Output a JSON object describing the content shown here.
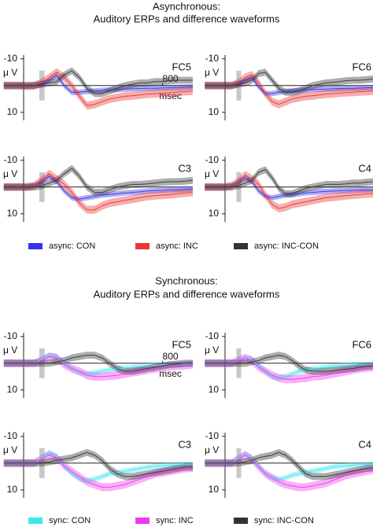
{
  "section_titles": [
    [
      "Asynchronous:",
      "Auditory ERPs and difference waveforms"
    ],
    [
      "Synchronous:",
      "Auditory ERPs and difference waveforms"
    ]
  ],
  "chart_data": [
    {
      "type": "line",
      "title": "FC5",
      "y_label": "μ V",
      "x_label": "msec",
      "ylim": [
        -12,
        13
      ],
      "y_inverted": true,
      "yticks": [
        -10,
        10
      ],
      "xlim": [
        -275,
        1000
      ],
      "xticks": [
        800
      ],
      "stimulus_window": [
        -15,
        20
      ],
      "x": [
        -250,
        -200,
        -150,
        -100,
        -50,
        0,
        50,
        100,
        150,
        200,
        250,
        300,
        350,
        400,
        450,
        500,
        550,
        600,
        650,
        700,
        750,
        800,
        850,
        900,
        950,
        1000
      ],
      "series": [
        {
          "name": "async: CON",
          "color": "#3535e8",
          "band": 1.0,
          "values": [
            0,
            0,
            0,
            0.2,
            0,
            -0.5,
            -2,
            -3.8,
            0,
            2.6,
            2.5,
            2.2,
            2,
            1.8,
            1.6,
            1.5,
            1.3,
            1.2,
            1.1,
            1,
            1,
            0.9,
            0.8,
            0.7,
            0.6,
            0.5
          ]
        },
        {
          "name": "async: INC",
          "color": "#e83535",
          "band": 1.5,
          "values": [
            0,
            0,
            0,
            0.2,
            0,
            -1,
            -3,
            -5,
            -3,
            0,
            4,
            7.5,
            7,
            6,
            5,
            4.5,
            4,
            3.8,
            3.5,
            3.2,
            3,
            2.8,
            2.6,
            2.4,
            2.2,
            2
          ]
        },
        {
          "name": "async: INC-CON",
          "color": "#333333",
          "band": 1.3,
          "values": [
            0,
            0,
            0,
            0,
            0,
            -0.5,
            -1,
            -1.5,
            -4,
            -5.5,
            -3,
            1,
            3,
            3,
            2,
            1,
            0,
            -0.5,
            -1,
            -1,
            -1.5,
            -1.5,
            -1.8,
            -2,
            -2,
            -2
          ]
        }
      ]
    },
    {
      "type": "line",
      "title": "FC6",
      "y_label": "μ V",
      "ylim": [
        -12,
        13
      ],
      "y_inverted": true,
      "yticks": [
        -10,
        10
      ],
      "xlim": [
        -275,
        1000
      ],
      "stimulus_window": [
        -15,
        20
      ],
      "x": [
        -250,
        -200,
        -150,
        -100,
        -50,
        0,
        50,
        100,
        150,
        200,
        250,
        300,
        350,
        400,
        450,
        500,
        550,
        600,
        650,
        700,
        750,
        800,
        850,
        900,
        950,
        1000
      ],
      "series": [
        {
          "name": "async: CON",
          "color": "#3535e8",
          "band": 1.0,
          "values": [
            0,
            0,
            0,
            0,
            0,
            -0.5,
            -2,
            -3,
            0.5,
            3,
            3,
            2.5,
            2.2,
            2,
            1.8,
            1.6,
            1.5,
            1.4,
            1.3,
            1.2,
            1.1,
            1,
            1,
            0.9,
            0.8,
            0.8
          ]
        },
        {
          "name": "async: INC",
          "color": "#e83535",
          "band": 1.5,
          "values": [
            0,
            0,
            0,
            0,
            0,
            -1,
            -3,
            -4,
            -1,
            3,
            6,
            7,
            6,
            5,
            4.5,
            4,
            3.8,
            3.5,
            3.2,
            3,
            2.8,
            2.6,
            2.5,
            2.3,
            2.2,
            2
          ]
        },
        {
          "name": "async: INC-CON",
          "color": "#333333",
          "band": 1.3,
          "values": [
            0,
            0,
            0,
            0,
            0,
            -0.5,
            -1,
            -2,
            -4.5,
            -5,
            -2,
            1,
            2.5,
            2.5,
            2,
            1,
            0,
            -0.5,
            -1,
            -1.2,
            -1.5,
            -1.8,
            -2,
            -2,
            -2.2,
            -2.5
          ]
        }
      ]
    },
    {
      "type": "line",
      "title": "C3",
      "y_label": "μ V",
      "ylim": [
        -12,
        13
      ],
      "y_inverted": true,
      "yticks": [
        -10,
        10
      ],
      "xlim": [
        -275,
        1000
      ],
      "stimulus_window": [
        -15,
        20
      ],
      "x": [
        -250,
        -200,
        -150,
        -100,
        -50,
        0,
        50,
        100,
        150,
        200,
        250,
        300,
        350,
        400,
        450,
        500,
        550,
        600,
        650,
        700,
        750,
        800,
        850,
        900,
        950,
        1000
      ],
      "series": [
        {
          "name": "async: CON",
          "color": "#3535e8",
          "band": 1.0,
          "values": [
            0,
            0,
            0,
            0,
            -0.5,
            -2,
            -4,
            -2,
            1.5,
            4,
            4.5,
            4,
            3.5,
            3,
            2.8,
            2.5,
            2.2,
            2,
            1.8,
            1.5,
            1.3,
            1.2,
            1,
            1,
            0.8,
            0.8
          ]
        },
        {
          "name": "async: INC",
          "color": "#e83535",
          "band": 1.5,
          "values": [
            0,
            0,
            0,
            0,
            -0.5,
            -2.5,
            -5,
            -3,
            -1,
            2,
            6,
            8.5,
            8.5,
            7,
            6,
            5.5,
            5,
            4.5,
            4,
            3.5,
            3.2,
            3,
            2.8,
            2.5,
            2.2,
            2
          ]
        },
        {
          "name": "async: INC-CON",
          "color": "#333333",
          "band": 1.3,
          "values": [
            0,
            0,
            0,
            0,
            0,
            -0.5,
            -1.5,
            -2.5,
            -5,
            -7,
            -4,
            0,
            2,
            2,
            1,
            0,
            -0.5,
            -1,
            -1,
            -1.2,
            -1.5,
            -1.8,
            -2,
            -2,
            -2.2,
            -2.5
          ]
        }
      ]
    },
    {
      "type": "line",
      "title": "C4",
      "y_label": "μ V",
      "ylim": [
        -12,
        13
      ],
      "y_inverted": true,
      "yticks": [
        -10,
        10
      ],
      "xlim": [
        -275,
        1000
      ],
      "stimulus_window": [
        -15,
        20
      ],
      "x": [
        -250,
        -200,
        -150,
        -100,
        -50,
        0,
        50,
        100,
        150,
        200,
        250,
        300,
        350,
        400,
        450,
        500,
        550,
        600,
        650,
        700,
        750,
        800,
        850,
        900,
        950,
        1000
      ],
      "series": [
        {
          "name": "async: CON",
          "color": "#3535e8",
          "band": 1.0,
          "values": [
            0,
            0,
            0,
            0,
            -0.5,
            -2,
            -3.5,
            -2,
            1.5,
            3.5,
            4,
            3.5,
            3,
            2.8,
            2.5,
            2.2,
            2,
            1.8,
            1.6,
            1.5,
            1.4,
            1.3,
            1.2,
            1.1,
            1,
            1
          ]
        },
        {
          "name": "async: INC",
          "color": "#e83535",
          "band": 1.5,
          "values": [
            0,
            0,
            0,
            0,
            -0.5,
            -2,
            -4.5,
            -3,
            -1,
            3,
            6.5,
            8,
            7.5,
            6.5,
            6,
            5.5,
            5,
            4.5,
            4,
            3.8,
            3.5,
            3.2,
            3,
            2.8,
            2.5,
            2.5
          ]
        },
        {
          "name": "async: INC-CON",
          "color": "#333333",
          "band": 1.3,
          "values": [
            0,
            0,
            0,
            0,
            0,
            -0.5,
            -1.5,
            -2.5,
            -5.5,
            -6.5,
            -3.5,
            0.5,
            2.5,
            2.5,
            1.5,
            0.5,
            0,
            -0.5,
            -1,
            -1,
            -1,
            -1.2,
            -1.5,
            -1.5,
            -1.8,
            -2
          ]
        }
      ]
    },
    {
      "type": "line",
      "title": "FC5",
      "y_label": "μ V",
      "x_label": "msec",
      "ylim": [
        -12,
        13
      ],
      "y_inverted": true,
      "yticks": [
        -10,
        10
      ],
      "xlim": [
        -275,
        1000
      ],
      "xticks": [
        800
      ],
      "stimulus_window": [
        -15,
        20
      ],
      "x": [
        -250,
        -200,
        -150,
        -100,
        -50,
        0,
        50,
        100,
        150,
        200,
        250,
        300,
        350,
        400,
        450,
        500,
        550,
        600,
        650,
        700,
        750,
        800,
        850,
        900,
        950,
        1000
      ],
      "series": [
        {
          "name": "sync: CON",
          "color": "#3ee6f0",
          "band": 1.0,
          "values": [
            0,
            0,
            0,
            0,
            0,
            -1.5,
            -3,
            -2.5,
            0,
            2,
            3.5,
            4,
            3.5,
            3,
            2.5,
            2,
            1.8,
            1.5,
            1.2,
            1,
            0.8,
            0.6,
            0.5,
            0.4,
            0.3,
            0.2
          ]
        },
        {
          "name": "sync: INC",
          "color": "#ee3aee",
          "band": 1.5,
          "values": [
            0,
            0,
            0,
            0,
            0,
            -1,
            -2.5,
            -2,
            0.5,
            2,
            3,
            4.5,
            5,
            5,
            4.8,
            4.5,
            4,
            3.5,
            3,
            2.5,
            2,
            1.5,
            1.2,
            1,
            0.8,
            0.5
          ]
        },
        {
          "name": "sync: INC-CON",
          "color": "#333333",
          "band": 1.3,
          "values": [
            0,
            0,
            0,
            0,
            0,
            0,
            0,
            -0.5,
            -1,
            -2,
            -2.5,
            -3,
            -3,
            -2,
            0,
            2,
            3,
            3,
            2.5,
            2,
            1.5,
            1,
            0.5,
            0.3,
            0,
            0
          ]
        }
      ]
    },
    {
      "type": "line",
      "title": "FC6",
      "y_label": "μ V",
      "ylim": [
        -12,
        13
      ],
      "y_inverted": true,
      "yticks": [
        -10,
        10
      ],
      "xlim": [
        -275,
        1000
      ],
      "stimulus_window": [
        -15,
        20
      ],
      "x": [
        -250,
        -200,
        -150,
        -100,
        -50,
        0,
        50,
        100,
        150,
        200,
        250,
        300,
        350,
        400,
        450,
        500,
        550,
        600,
        650,
        700,
        750,
        800,
        850,
        900,
        950,
        1000
      ],
      "series": [
        {
          "name": "sync: CON",
          "color": "#3ee6f0",
          "band": 1.0,
          "values": [
            0,
            0,
            0,
            0,
            0,
            -1,
            -2,
            -1.5,
            1,
            3,
            5,
            5.5,
            5,
            4,
            3,
            2.5,
            2,
            1.8,
            1.5,
            1.2,
            1,
            0.8,
            0.6,
            0.5,
            0.4,
            0.3
          ]
        },
        {
          "name": "sync: INC",
          "color": "#ee3aee",
          "band": 1.5,
          "values": [
            0,
            0,
            0,
            0,
            0,
            -1,
            -2,
            -1,
            1.5,
            3,
            4.5,
            5.5,
            6,
            6,
            5.8,
            5.5,
            5,
            4.8,
            4.5,
            4,
            3.5,
            3,
            2.5,
            2,
            1.8,
            1.5
          ]
        },
        {
          "name": "sync: INC-CON",
          "color": "#333333",
          "band": 1.3,
          "values": [
            0,
            0,
            0,
            0,
            0,
            0,
            0,
            -0.5,
            -1,
            -2,
            -2.5,
            -3,
            -2.5,
            -1,
            1,
            2.5,
            3,
            3,
            3,
            2.8,
            2.5,
            2.2,
            2,
            1.5,
            1.2,
            1
          ]
        }
      ]
    },
    {
      "type": "line",
      "title": "C3",
      "y_label": "μ V",
      "ylim": [
        -12,
        13
      ],
      "y_inverted": true,
      "yticks": [
        -10,
        10
      ],
      "xlim": [
        -275,
        1000
      ],
      "stimulus_window": [
        -15,
        20
      ],
      "x": [
        -250,
        -200,
        -150,
        -100,
        -50,
        0,
        50,
        100,
        150,
        200,
        250,
        300,
        350,
        400,
        450,
        500,
        550,
        600,
        650,
        700,
        750,
        800,
        850,
        900,
        950,
        1000
      ],
      "series": [
        {
          "name": "sync: CON",
          "color": "#3ee6f0",
          "band": 1.0,
          "values": [
            0,
            0,
            0,
            0,
            0,
            -2,
            -4,
            -2.5,
            1,
            4,
            6,
            6.5,
            6,
            5,
            4,
            3.5,
            3,
            2.5,
            2,
            1.5,
            1.2,
            1,
            0.8,
            0.6,
            0.5,
            0.4
          ]
        },
        {
          "name": "sync: INC",
          "color": "#ee3aee",
          "band": 1.5,
          "values": [
            0,
            0,
            0,
            0,
            0,
            -1.5,
            -3,
            -2,
            1,
            3,
            5,
            7,
            8,
            9,
            9,
            8.5,
            8,
            7,
            6,
            5,
            4,
            3.5,
            3,
            2.5,
            2,
            1.8
          ]
        },
        {
          "name": "sync: INC-CON",
          "color": "#333333",
          "band": 1.3,
          "values": [
            0,
            0,
            0,
            0,
            0,
            0,
            -0.5,
            -1,
            -1.5,
            -2,
            -3,
            -4,
            -3,
            -1,
            2,
            4,
            5,
            5,
            4.5,
            4,
            3.5,
            3,
            2.5,
            2,
            1.5,
            1.5
          ]
        }
      ]
    },
    {
      "type": "line",
      "title": "C4",
      "y_label": "μ V",
      "ylim": [
        -12,
        13
      ],
      "y_inverted": true,
      "yticks": [
        -10,
        10
      ],
      "xlim": [
        -275,
        1000
      ],
      "stimulus_window": [
        -15,
        20
      ],
      "x": [
        -250,
        -200,
        -150,
        -100,
        -50,
        0,
        50,
        100,
        150,
        200,
        250,
        300,
        350,
        400,
        450,
        500,
        550,
        600,
        650,
        700,
        750,
        800,
        850,
        900,
        950,
        1000
      ],
      "series": [
        {
          "name": "sync: CON",
          "color": "#3ee6f0",
          "band": 1.0,
          "values": [
            0,
            0,
            0,
            0,
            0,
            -2,
            -3.5,
            -2,
            1,
            4,
            5.5,
            6,
            5.5,
            4.5,
            4,
            3.5,
            3,
            2.5,
            2,
            1.5,
            1.2,
            1,
            0.8,
            0.6,
            0.5,
            0.4
          ]
        },
        {
          "name": "sync: INC",
          "color": "#ee3aee",
          "band": 1.5,
          "values": [
            0,
            0,
            0,
            0,
            0,
            -1.5,
            -3,
            -1.5,
            1.5,
            4,
            5.5,
            7,
            8,
            8.5,
            9,
            9,
            8.5,
            8,
            7.5,
            6.5,
            5.5,
            4.5,
            4,
            3.5,
            3,
            2.5
          ]
        },
        {
          "name": "sync: INC-CON",
          "color": "#333333",
          "band": 1.3,
          "values": [
            0,
            0,
            0,
            0,
            0,
            0,
            -0.5,
            -1,
            -2,
            -2.5,
            -3,
            -4,
            -3,
            -1,
            1.5,
            4,
            5,
            5,
            5,
            4.5,
            4,
            3.5,
            3,
            2.5,
            2,
            1.8
          ]
        }
      ]
    }
  ]
}
